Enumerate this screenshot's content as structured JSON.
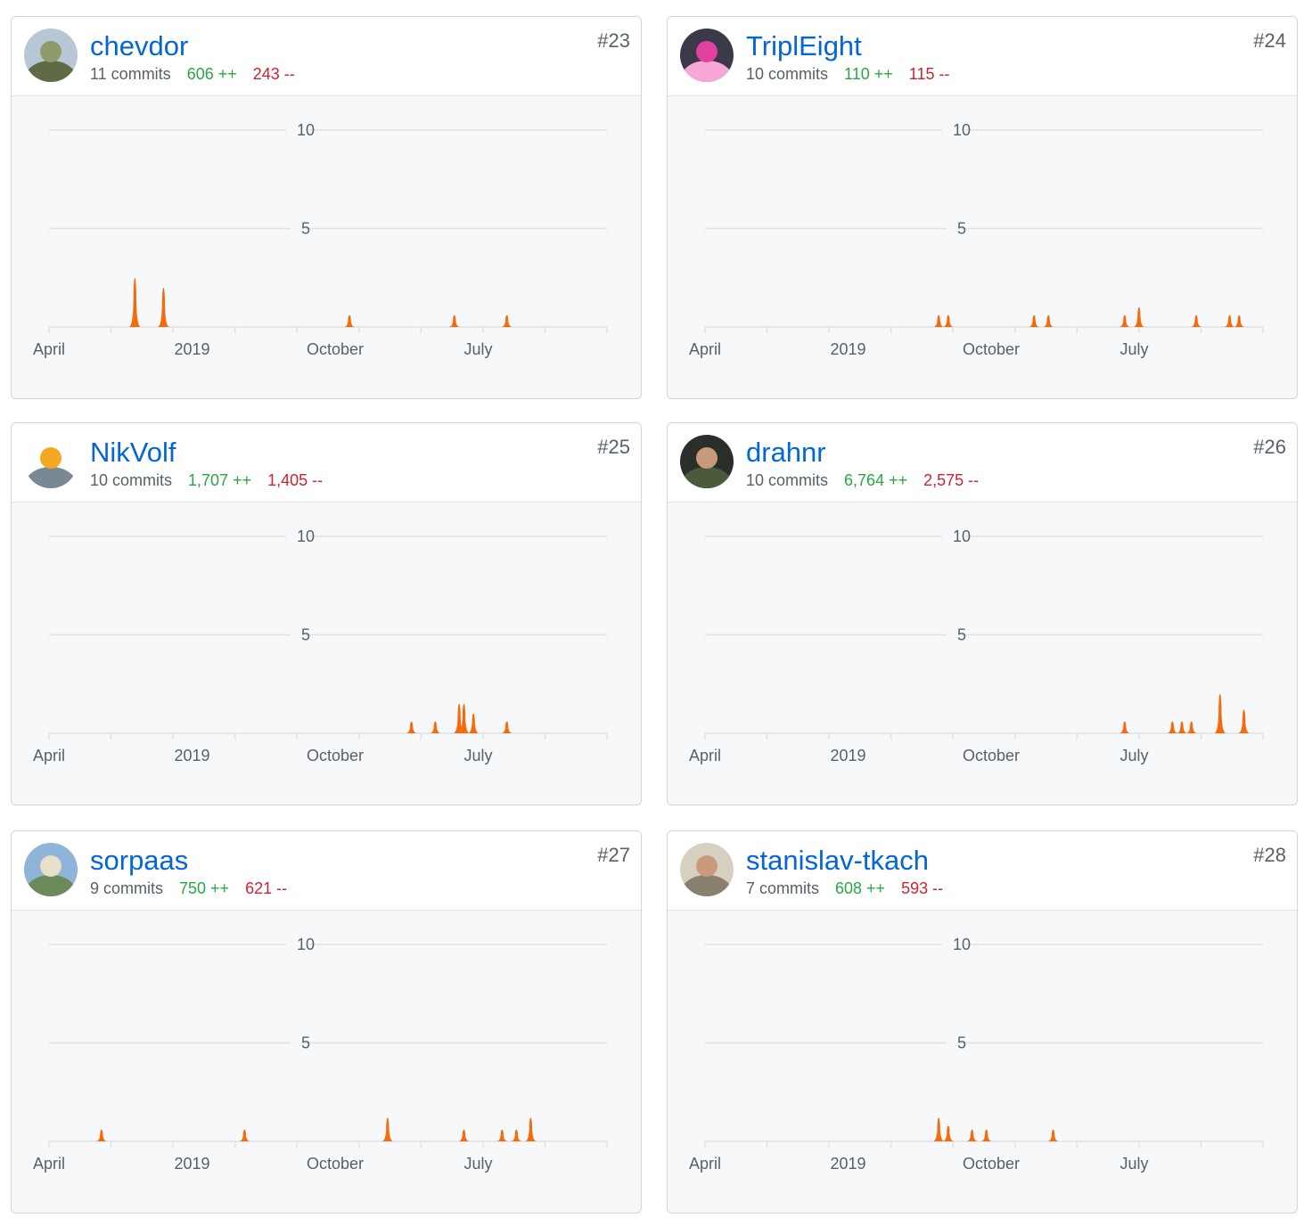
{
  "chart_defaults": {
    "type": "area",
    "x_tick_labels": [
      "April",
      "2019",
      "October",
      "July"
    ],
    "y_ticks": [
      5,
      10
    ],
    "ylim": [
      0,
      10
    ],
    "fill_color": "#f66a0a"
  },
  "contributors": [
    {
      "rank": "#23",
      "username": "chevdor",
      "commits": "11 commits",
      "additions": "606 ++",
      "deletions": "243 --",
      "avatar": {
        "icon": "avatar-landscape-icon",
        "colors": [
          "#b8c7d6",
          "#8f9b6a",
          "#5e6b45"
        ]
      },
      "chart_data": {
        "type": "area",
        "x_tick_labels": [
          "April",
          "2019",
          "October",
          "July"
        ],
        "y_ticks": [
          5,
          10
        ],
        "ylim": [
          0,
          10
        ],
        "peaks": [
          {
            "week": 18,
            "commits": 2.5
          },
          {
            "week": 24,
            "commits": 2
          },
          {
            "week": 63,
            "commits": 0.6
          },
          {
            "week": 85,
            "commits": 0.6
          },
          {
            "week": 96,
            "commits": 0.6
          }
        ]
      }
    },
    {
      "rank": "#24",
      "username": "TriplEight",
      "commits": "10 commits",
      "additions": "110 ++",
      "deletions": "115 --",
      "avatar": {
        "icon": "avatar-pink-car-icon",
        "colors": [
          "#3a3a4a",
          "#e040a0",
          "#f7a8d8"
        ]
      },
      "chart_data": {
        "type": "area",
        "x_tick_labels": [
          "April",
          "2019",
          "October",
          "July"
        ],
        "y_ticks": [
          5,
          10
        ],
        "ylim": [
          0,
          10
        ],
        "peaks": [
          {
            "week": 49,
            "commits": 0.6
          },
          {
            "week": 51,
            "commits": 0.6
          },
          {
            "week": 69,
            "commits": 0.6
          },
          {
            "week": 72,
            "commits": 0.6
          },
          {
            "week": 88,
            "commits": 0.6
          },
          {
            "week": 91,
            "commits": 1
          },
          {
            "week": 103,
            "commits": 0.6
          },
          {
            "week": 110,
            "commits": 0.6
          },
          {
            "week": 112,
            "commits": 0.6
          }
        ]
      }
    },
    {
      "rank": "#25",
      "username": "NikVolf",
      "commits": "10 commits",
      "additions": "1,707 ++",
      "deletions": "1,405 --",
      "avatar": {
        "icon": "avatar-cartoon-engineer-icon",
        "colors": [
          "#ffffff",
          "#f5a623",
          "#7a8894"
        ]
      },
      "chart_data": {
        "type": "area",
        "x_tick_labels": [
          "April",
          "2019",
          "October",
          "July"
        ],
        "y_ticks": [
          5,
          10
        ],
        "ylim": [
          0,
          10
        ],
        "peaks": [
          {
            "week": 76,
            "commits": 0.6
          },
          {
            "week": 81,
            "commits": 0.6
          },
          {
            "week": 86,
            "commits": 1.5
          },
          {
            "week": 87,
            "commits": 1.5
          },
          {
            "week": 89,
            "commits": 1
          },
          {
            "week": 96,
            "commits": 0.6
          }
        ]
      }
    },
    {
      "rank": "#26",
      "username": "drahnr",
      "commits": "10 commits",
      "additions": "6,764 ++",
      "deletions": "2,575 --",
      "avatar": {
        "icon": "avatar-photo-man-icon",
        "colors": [
          "#2b2f2a",
          "#c99a7c",
          "#4a5a3a"
        ]
      },
      "chart_data": {
        "type": "area",
        "x_tick_labels": [
          "April",
          "2019",
          "October",
          "July"
        ],
        "y_ticks": [
          5,
          10
        ],
        "ylim": [
          0,
          10
        ],
        "peaks": [
          {
            "week": 88,
            "commits": 0.6
          },
          {
            "week": 98,
            "commits": 0.6
          },
          {
            "week": 100,
            "commits": 0.6
          },
          {
            "week": 102,
            "commits": 0.6
          },
          {
            "week": 108,
            "commits": 2
          },
          {
            "week": 113,
            "commits": 1.2
          }
        ]
      }
    },
    {
      "rank": "#27",
      "username": "sorpaas",
      "commits": "9 commits",
      "additions": "750 ++",
      "deletions": "621 --",
      "avatar": {
        "icon": "avatar-seaside-landscape-icon",
        "colors": [
          "#8fb4d9",
          "#e8e0c8",
          "#6c8a5a"
        ]
      },
      "chart_data": {
        "type": "area",
        "x_tick_labels": [
          "April",
          "2019",
          "October",
          "July"
        ],
        "y_ticks": [
          5,
          10
        ],
        "ylim": [
          0,
          10
        ],
        "peaks": [
          {
            "week": 11,
            "commits": 0.6
          },
          {
            "week": 41,
            "commits": 0.6
          },
          {
            "week": 71,
            "commits": 1.2
          },
          {
            "week": 87,
            "commits": 0.6
          },
          {
            "week": 95,
            "commits": 0.6
          },
          {
            "week": 98,
            "commits": 0.6
          },
          {
            "week": 101,
            "commits": 1.2
          }
        ]
      }
    },
    {
      "rank": "#28",
      "username": "stanislav-tkach",
      "commits": "7 commits",
      "additions": "608 ++",
      "deletions": "593 --",
      "avatar": {
        "icon": "avatar-photo-man-icon",
        "colors": [
          "#d6d0c0",
          "#c99a7c",
          "#8a8070"
        ]
      },
      "chart_data": {
        "type": "area",
        "x_tick_labels": [
          "April",
          "2019",
          "October",
          "July"
        ],
        "y_ticks": [
          5,
          10
        ],
        "ylim": [
          0,
          10
        ],
        "peaks": [
          {
            "week": 49,
            "commits": 1.2
          },
          {
            "week": 51,
            "commits": 0.8
          },
          {
            "week": 56,
            "commits": 0.6
          },
          {
            "week": 59,
            "commits": 0.6
          },
          {
            "week": 73,
            "commits": 0.6
          }
        ]
      }
    }
  ]
}
